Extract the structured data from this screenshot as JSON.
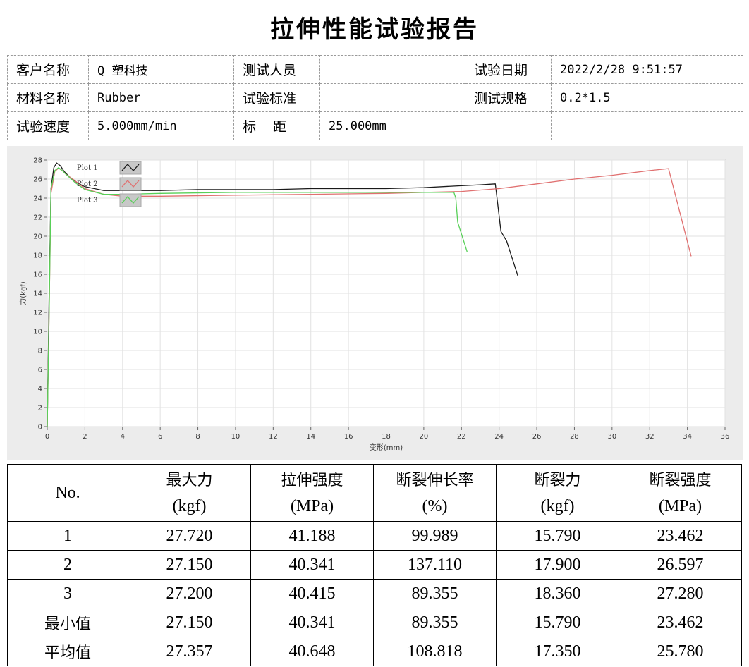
{
  "title": "拉伸性能试验报告",
  "info": {
    "customer_label": "客户名称",
    "customer_value": "Q 塑科技",
    "tester_label": "测试人员",
    "tester_value": "",
    "date_label": "试验日期",
    "date_value": "2022/2/28 9:51:57",
    "material_label": "材料名称",
    "material_value": "Rubber",
    "standard_label": "试验标准",
    "standard_value": "",
    "spec_label": "测试规格",
    "spec_value": "0.2*1.5",
    "speed_label": "试验速度",
    "speed_value": "5.000mm/min",
    "gauge_label": "标    距",
    "gauge_value": "25.000mm"
  },
  "chart_data": {
    "type": "line",
    "xlabel": "变形(mm)",
    "ylabel": "力(kgf)",
    "xlim": [
      0,
      36
    ],
    "ylim": [
      0,
      28
    ],
    "x_ticks": [
      0,
      2,
      4,
      6,
      8,
      10,
      12,
      14,
      16,
      18,
      20,
      22,
      24,
      26,
      28,
      30,
      32,
      34,
      36
    ],
    "y_ticks": [
      0,
      2,
      4,
      6,
      8,
      10,
      12,
      14,
      16,
      18,
      20,
      22,
      24,
      26,
      28
    ],
    "grid": true,
    "legend_position": "top-left",
    "series": [
      {
        "name": "Plot 1",
        "color": "#1a1a1a",
        "x": [
          0,
          0.1,
          0.2,
          0.35,
          0.5,
          0.7,
          0.9,
          1.2,
          1.6,
          2.0,
          3.0,
          4.0,
          6.0,
          8.0,
          10.0,
          12.0,
          14.0,
          16.0,
          18.0,
          20.0,
          22.0,
          23.0,
          23.8,
          24.1,
          24.4,
          25.0
        ],
        "y": [
          0,
          14,
          25,
          27.2,
          27.7,
          27.4,
          26.8,
          26.2,
          25.6,
          25.2,
          24.8,
          24.8,
          24.8,
          24.9,
          24.9,
          24.9,
          25.0,
          25.0,
          25.0,
          25.1,
          25.3,
          25.4,
          25.5,
          20.5,
          19.5,
          15.8
        ]
      },
      {
        "name": "Plot 2",
        "color": "#e07070",
        "x": [
          0,
          0.1,
          0.2,
          0.4,
          0.6,
          0.8,
          1.0,
          1.5,
          2.0,
          3.0,
          4.0,
          6.0,
          10.0,
          14.0,
          18.0,
          20.0,
          22.0,
          24.0,
          26.0,
          28.0,
          30.0,
          32.0,
          33.0,
          34.2
        ],
        "y": [
          0,
          12,
          24.5,
          26.8,
          27.15,
          26.9,
          26.5,
          25.8,
          25.0,
          24.4,
          24.2,
          24.2,
          24.3,
          24.4,
          24.5,
          24.6,
          24.7,
          25.0,
          25.5,
          26.0,
          26.4,
          26.9,
          27.1,
          17.9
        ]
      },
      {
        "name": "Plot 3",
        "color": "#58d058",
        "x": [
          0,
          0.1,
          0.2,
          0.4,
          0.6,
          0.8,
          1.0,
          1.5,
          2.0,
          3.0,
          4.0,
          6.0,
          10.0,
          14.0,
          18.0,
          20.0,
          21.0,
          21.6,
          21.7,
          21.8,
          22.3
        ],
        "y": [
          0,
          12,
          25,
          26.9,
          27.2,
          26.9,
          26.5,
          25.6,
          24.9,
          24.4,
          24.4,
          24.5,
          24.6,
          24.6,
          24.6,
          24.6,
          24.6,
          24.6,
          24.0,
          21.5,
          18.36
        ]
      }
    ]
  },
  "results": {
    "headers": [
      {
        "line1": "No.",
        "line2": ""
      },
      {
        "line1": "最大力",
        "line2": "(kgf)"
      },
      {
        "line1": "拉伸强度",
        "line2": "(MPa)"
      },
      {
        "line1": "断裂伸长率",
        "line2": "(%)"
      },
      {
        "line1": "断裂力",
        "line2": "(kgf)"
      },
      {
        "line1": "断裂强度",
        "line2": "(MPa)"
      }
    ],
    "rows": [
      [
        "1",
        "27.720",
        "41.188",
        "99.989",
        "15.790",
        "23.462"
      ],
      [
        "2",
        "27.150",
        "40.341",
        "137.110",
        "17.900",
        "26.597"
      ],
      [
        "3",
        "27.200",
        "40.415",
        "89.355",
        "18.360",
        "27.280"
      ],
      [
        "最小值",
        "27.150",
        "40.341",
        "89.355",
        "15.790",
        "23.462"
      ],
      [
        "平均值",
        "27.357",
        "40.648",
        "108.818",
        "17.350",
        "25.780"
      ]
    ]
  }
}
